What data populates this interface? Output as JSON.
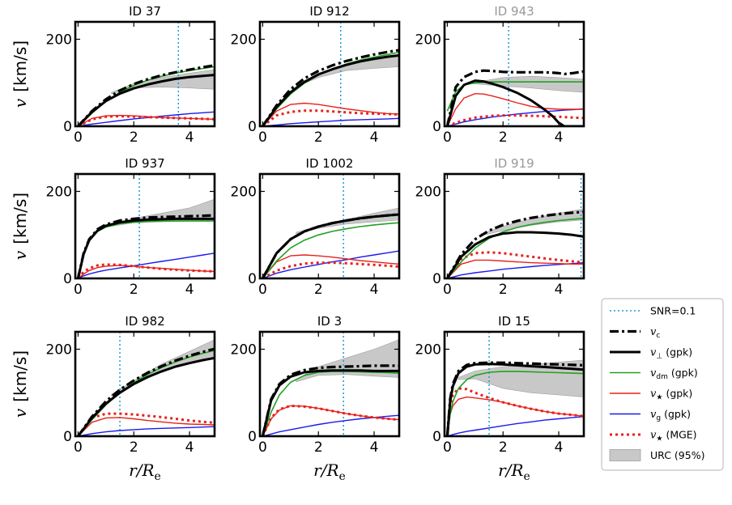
{
  "chart_data": {
    "type": "line",
    "xlabel": "r/R",
    "xlabel_sub": "e",
    "ylabel_symbol": "v",
    "ylabel_unit": "[km/s]",
    "xlim": [
      -0.1,
      4.9
    ],
    "ylim": [
      0,
      240
    ],
    "xticks": [
      0,
      2,
      4
    ],
    "yticks": [
      0,
      200
    ],
    "colors": {
      "snr": "#1f9bd1",
      "vc": "#000000",
      "vperp": "#000000",
      "vdm": "#23a023",
      "vstar": "#e8211b",
      "vg": "#1a1aee",
      "vstar_mge": "#e8211b",
      "urc": "#c8c8c8",
      "title_faded": "#999999"
    },
    "legend": {
      "placement": "right",
      "items": [
        {
          "key": "snr",
          "text": "SNR=0.1"
        },
        {
          "key": "vc",
          "sym": "v",
          "sub": "c",
          "text": ""
        },
        {
          "key": "vperp",
          "sym": "v",
          "sub": "⊥",
          "text": "(gpk)"
        },
        {
          "key": "vdm",
          "sym": "v",
          "sub": "dm",
          "text": "(gpk)"
        },
        {
          "key": "vstar",
          "sym": "v",
          "sub": "★",
          "text": "(gpk)"
        },
        {
          "key": "vg",
          "sym": "v",
          "sub": "g",
          "text": "(gpk)"
        },
        {
          "key": "vstar_mge",
          "sym": "v",
          "sub": "★",
          "text": "(MGE)"
        },
        {
          "key": "urc",
          "text": "URC (95%)"
        }
      ]
    },
    "panels": [
      {
        "title": "ID 37",
        "faded": false,
        "snr_x": 3.6,
        "x": [
          0,
          0.5,
          1,
          1.5,
          2,
          2.5,
          3,
          3.5,
          4,
          4.5,
          4.9
        ],
        "series": {
          "vc": [
            0,
            35,
            62,
            82,
            97,
            108,
            117,
            124,
            130,
            136,
            140
          ],
          "vperp": [
            0,
            33,
            58,
            75,
            87,
            96,
            103,
            109,
            113,
            116,
            118
          ],
          "vdm": [
            0,
            30,
            57,
            78,
            94,
            106,
            115,
            122,
            128,
            133,
            137
          ],
          "vstar": [
            0,
            18,
            24,
            25,
            24,
            22,
            20,
            19,
            18,
            17,
            16
          ],
          "vg": [
            0,
            5,
            9,
            13,
            17,
            20,
            23,
            26,
            29,
            31,
            33
          ],
          "vstar_mge": [
            0,
            16,
            22,
            23,
            22,
            21,
            20,
            19,
            18,
            17,
            16
          ]
        },
        "urc_x": [
          1.2,
          2,
          3,
          4,
          4.9
        ],
        "urc_lo": [
          75,
          88,
          90,
          88,
          85
        ],
        "urc_hi": [
          78,
          98,
          112,
          122,
          130
        ]
      },
      {
        "title": "ID 912",
        "faded": false,
        "snr_x": 2.8,
        "x": [
          0,
          0.5,
          1,
          1.5,
          2,
          2.5,
          3,
          3.5,
          4,
          4.5,
          4.9
        ],
        "series": {
          "vc": [
            0,
            48,
            85,
            110,
            127,
            140,
            150,
            158,
            165,
            171,
            175
          ],
          "vperp": [
            0,
            44,
            78,
            102,
            119,
            131,
            141,
            149,
            155,
            160,
            163
          ],
          "vdm": [
            0,
            40,
            74,
            99,
            118,
            132,
            143,
            152,
            159,
            165,
            170
          ],
          "vstar": [
            0,
            35,
            50,
            53,
            50,
            45,
            40,
            36,
            32,
            29,
            28
          ],
          "vg": [
            0,
            3,
            6,
            8,
            10,
            12,
            14,
            15,
            16,
            17,
            18
          ],
          "vstar_mge": [
            0,
            25,
            33,
            36,
            36,
            34,
            32,
            30,
            29,
            28,
            27
          ]
        },
        "urc_x": [
          1.2,
          2,
          3,
          4,
          4.9
        ],
        "urc_lo": [
          90,
          112,
          128,
          133,
          137
        ],
        "urc_hi": [
          93,
          122,
          142,
          152,
          160
        ]
      },
      {
        "title": "ID 943",
        "faded": true,
        "snr_x": 2.2,
        "x": [
          0,
          0.3,
          0.6,
          1,
          1.3,
          1.6,
          2,
          2.5,
          3,
          3.5,
          3.8,
          4,
          4.2,
          4.5,
          4.9
        ],
        "series": {
          "vc": [
            0,
            90,
            113,
            125,
            128,
            127,
            125,
            124,
            124,
            124,
            123,
            122,
            120,
            122,
            126
          ],
          "vperp": [
            0,
            70,
            95,
            105,
            103,
            98,
            90,
            77,
            60,
            38,
            22,
            8,
            0,
            0,
            0
          ],
          "vdm": [
            35,
            80,
            95,
            100,
            101,
            102,
            102,
            102,
            102,
            102,
            102,
            102,
            102,
            102,
            102
          ],
          "vstar": [
            0,
            40,
            65,
            75,
            74,
            70,
            63,
            54,
            46,
            41,
            40,
            39,
            39,
            39,
            39
          ],
          "vg": [
            0,
            5,
            10,
            15,
            18,
            21,
            24,
            28,
            31,
            34,
            35,
            36,
            37,
            38,
            40
          ],
          "vstar_mge": [
            0,
            8,
            14,
            20,
            22,
            24,
            25,
            25,
            24,
            23,
            22,
            22,
            21,
            20,
            19
          ]
        },
        "urc_x": [
          0.9,
          2,
          3,
          4,
          4.9
        ],
        "urc_lo": [
          98,
          92,
          88,
          82,
          78
        ],
        "urc_hi": [
          100,
          112,
          115,
          112,
          108
        ]
      },
      {
        "title": "ID 937",
        "faded": false,
        "snr_x": 2.2,
        "x": [
          0,
          0.2,
          0.4,
          0.7,
          1,
          1.5,
          2,
          2.5,
          3,
          3.5,
          4,
          4.5,
          4.9
        ],
        "series": {
          "vc": [
            0,
            58,
            90,
            113,
            124,
            133,
            137,
            140,
            141,
            142,
            143,
            144,
            145
          ],
          "vperp": [
            0,
            56,
            88,
            110,
            121,
            129,
            133,
            135,
            136,
            137,
            137,
            137,
            137
          ],
          "vdm": [
            0,
            55,
            86,
            108,
            118,
            126,
            129,
            131,
            132,
            132,
            132,
            132,
            132
          ],
          "vstar": [
            0,
            10,
            18,
            25,
            28,
            30,
            28,
            25,
            23,
            21,
            19,
            17,
            16
          ],
          "vg": [
            0,
            6,
            10,
            15,
            19,
            24,
            29,
            34,
            39,
            44,
            49,
            54,
            58
          ],
          "vstar_mge": [
            0,
            15,
            23,
            30,
            32,
            31,
            28,
            25,
            22,
            20,
            18,
            17,
            16
          ]
        },
        "urc_x": [
          1.2,
          2,
          3,
          4,
          4.9
        ],
        "urc_lo": [
          120,
          128,
          130,
          132,
          134
        ],
        "urc_hi": [
          124,
          138,
          150,
          162,
          182
        ]
      },
      {
        "title": "ID 1002",
        "faded": false,
        "snr_x": 2.9,
        "x": [
          0,
          0.5,
          1,
          1.5,
          2,
          2.5,
          3,
          3.5,
          4,
          4.5,
          4.9
        ],
        "series": {
          "vc": [
            0,
            58,
            90,
            108,
            119,
            127,
            133,
            138,
            142,
            145,
            147
          ],
          "vperp": [
            0,
            58,
            90,
            108,
            119,
            127,
            133,
            138,
            142,
            145,
            147
          ],
          "vdm": [
            0,
            40,
            70,
            88,
            100,
            108,
            114,
            119,
            123,
            126,
            128
          ],
          "vstar": [
            0,
            38,
            52,
            54,
            52,
            49,
            45,
            41,
            38,
            35,
            33
          ],
          "vg": [
            0,
            12,
            20,
            26,
            32,
            38,
            43,
            49,
            54,
            59,
            63
          ],
          "vstar_mge": [
            0,
            18,
            28,
            34,
            36,
            36,
            35,
            33,
            31,
            29,
            27
          ]
        },
        "urc_x": [
          1.2,
          2,
          3,
          4,
          4.9
        ],
        "urc_lo": [
          103,
          115,
          125,
          130,
          134
        ],
        "urc_hi": [
          106,
          120,
          135,
          150,
          162
        ]
      },
      {
        "title": "ID 919",
        "faded": true,
        "snr_x": 4.8,
        "x": [
          0,
          0.5,
          1,
          1.5,
          2,
          2.5,
          3,
          3.5,
          4,
          4.5,
          4.9
        ],
        "series": {
          "vc": [
            0,
            55,
            90,
            110,
            123,
            132,
            139,
            144,
            148,
            151,
            153
          ],
          "vperp": [
            0,
            50,
            78,
            95,
            103,
            106,
            106,
            105,
            103,
            100,
            96
          ],
          "vdm": [
            0,
            38,
            70,
            92,
            107,
            117,
            124,
            129,
            133,
            136,
            138
          ],
          "vstar": [
            0,
            33,
            42,
            42,
            40,
            38,
            36,
            35,
            34,
            33,
            33
          ],
          "vg": [
            0,
            8,
            13,
            17,
            21,
            24,
            27,
            30,
            32,
            34,
            36
          ],
          "vstar_mge": [
            0,
            45,
            58,
            60,
            58,
            54,
            50,
            46,
            42,
            39,
            37
          ]
        },
        "urc_x": [
          1.2,
          2,
          3,
          4,
          4.9
        ],
        "urc_lo": [
          98,
          110,
          122,
          130,
          134
        ],
        "urc_hi": [
          102,
          120,
          137,
          150,
          160
        ]
      },
      {
        "title": "ID 982",
        "faded": false,
        "snr_x": 1.5,
        "x": [
          0,
          0.5,
          1,
          1.5,
          2,
          2.5,
          3,
          3.5,
          4,
          4.5,
          4.9
        ],
        "series": {
          "vc": [
            0,
            45,
            80,
            107,
            128,
            146,
            161,
            174,
            185,
            194,
            201
          ],
          "vperp": [
            0,
            42,
            75,
            100,
            120,
            136,
            149,
            160,
            168,
            175,
            180
          ],
          "vdm": [
            0,
            38,
            72,
            100,
            123,
            142,
            158,
            171,
            182,
            191,
            197
          ],
          "vstar": [
            0,
            32,
            42,
            43,
            40,
            36,
            33,
            30,
            28,
            27,
            26
          ],
          "vg": [
            0,
            6,
            10,
            13,
            15,
            17,
            18,
            19,
            20,
            21,
            22
          ],
          "vstar_mge": [
            0,
            42,
            52,
            52,
            50,
            47,
            44,
            40,
            36,
            33,
            31
          ]
        },
        "urc_x": [
          1.2,
          2,
          3,
          4,
          4.9
        ],
        "urc_lo": [
          92,
          118,
          150,
          170,
          182
        ],
        "urc_hi": [
          96,
          128,
          166,
          195,
          222
        ]
      },
      {
        "title": "ID 3",
        "faded": false,
        "snr_x": 2.9,
        "x": [
          0,
          0.3,
          0.6,
          1,
          1.5,
          2,
          2.5,
          3,
          3.5,
          4,
          4.5,
          4.9
        ],
        "series": {
          "vc": [
            0,
            85,
            120,
            141,
            152,
            157,
            159,
            160,
            161,
            162,
            162,
            162
          ],
          "vperp": [
            0,
            82,
            117,
            137,
            147,
            150,
            151,
            151,
            151,
            150,
            150,
            150
          ],
          "vdm": [
            0,
            55,
            95,
            124,
            140,
            147,
            149,
            149,
            148,
            147,
            146,
            145
          ],
          "vstar": [
            0,
            40,
            60,
            70,
            69,
            64,
            58,
            52,
            47,
            43,
            40,
            38
          ],
          "vg": [
            0,
            5,
            10,
            15,
            21,
            27,
            32,
            36,
            40,
            43,
            46,
            48
          ],
          "vstar_mge": [
            0,
            42,
            62,
            70,
            68,
            64,
            58,
            52,
            47,
            43,
            40,
            38
          ]
        },
        "urc_x": [
          1.2,
          2,
          3,
          4,
          4.9
        ],
        "urc_lo": [
          125,
          140,
          142,
          138,
          135
        ],
        "urc_hi": [
          130,
          160,
          180,
          200,
          222
        ]
      },
      {
        "title": "ID 15",
        "faded": false,
        "snr_x": 1.5,
        "x": [
          0,
          0.1,
          0.2,
          0.4,
          0.7,
          1,
          1.5,
          2,
          2.5,
          3,
          3.5,
          4,
          4.5,
          4.9
        ],
        "series": {
          "vc": [
            0,
            85,
            120,
            150,
            164,
            168,
            169,
            169,
            168,
            167,
            166,
            165,
            164,
            163
          ],
          "vperp": [
            0,
            80,
            115,
            145,
            160,
            165,
            166,
            165,
            163,
            161,
            159,
            157,
            155,
            153
          ],
          "vdm": [
            0,
            50,
            80,
            110,
            130,
            140,
            147,
            149,
            149,
            148,
            147,
            146,
            145,
            144
          ],
          "vstar": [
            0,
            50,
            70,
            85,
            90,
            88,
            84,
            78,
            70,
            63,
            57,
            52,
            49,
            46
          ],
          "vg": [
            0,
            2,
            4,
            7,
            11,
            14,
            19,
            24,
            29,
            33,
            37,
            40,
            43,
            45
          ],
          "vstar_mge": [
            0,
            70,
            95,
            110,
            108,
            100,
            88,
            78,
            70,
            63,
            57,
            52,
            49,
            46
          ]
        },
        "urc_x": [
          0.4,
          1,
          2,
          3,
          4,
          4.9
        ],
        "urc_lo": [
          130,
          132,
          110,
          100,
          95,
          90
        ],
        "urc_hi": [
          135,
          150,
          160,
          165,
          170,
          175
        ]
      }
    ]
  }
}
